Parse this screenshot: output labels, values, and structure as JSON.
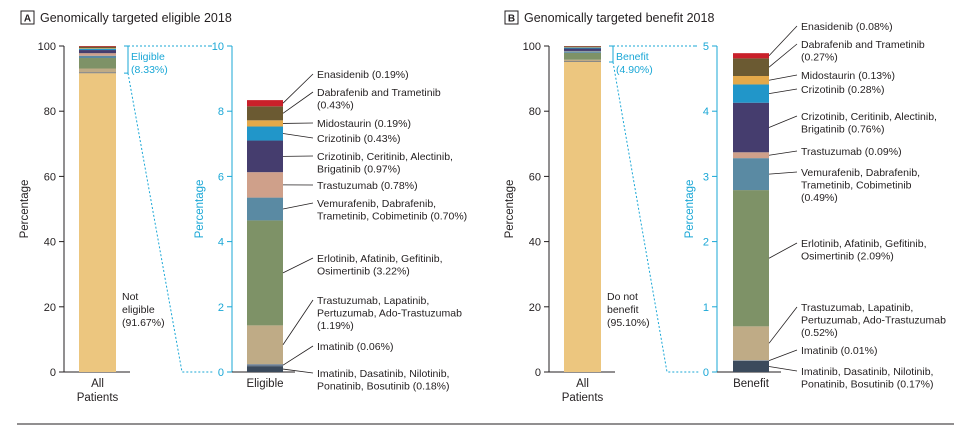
{
  "chart_data": [
    {
      "type": "stacked-bar",
      "panel_label": "A",
      "title": "Genomically targeted eligible 2018",
      "left_bar": {
        "category": "All Patients",
        "ylabel": "Percentage",
        "ylim": [
          0,
          100
        ],
        "yticks": [
          "0",
          "20",
          "40",
          "60",
          "80",
          "100"
        ],
        "main_label": [
          "Not",
          "eligible",
          "(91.67%)"
        ],
        "main_value": 91.67,
        "highlight_label": [
          "Eligible",
          "(8.33%)"
        ],
        "highlight_value": 8.33
      },
      "right_bar": {
        "category": "Eligible",
        "ylabel": "Percentage",
        "ylim": [
          0,
          10
        ],
        "yticks": [
          "0",
          "2",
          "4",
          "6",
          "8",
          "10"
        ],
        "segments": [
          {
            "label": [
              "Imatinib, Dasatinib, Nilotinib,",
              "Ponatinib, Bosutinib (0.18%)"
            ],
            "value": 0.18,
            "color": "#3b4a5c"
          },
          {
            "label": [
              "Imatinib (0.06%)"
            ],
            "value": 0.06,
            "color": "#6b7d93"
          },
          {
            "label": [
              "Trastuzumab, Lapatinib,",
              "Pertuzumab, Ado-Trastuzumab",
              "(1.19%)"
            ],
            "value": 1.19,
            "color": "#bfab86"
          },
          {
            "label": [
              "Erlotinib, Afatinib, Gefitinib,",
              "Osimertinib (3.22%)"
            ],
            "value": 3.22,
            "color": "#7e9267"
          },
          {
            "label": [
              "Vemurafenib, Dabrafenib,",
              "Trametinib, Cobimetinib (0.70%)"
            ],
            "value": 0.7,
            "color": "#5a8aa3"
          },
          {
            "label": [
              "Trastuzumab (0.78%)"
            ],
            "value": 0.78,
            "color": "#cfa08a"
          },
          {
            "label": [
              "Crizotinib, Ceritinib, Alectinib,",
              "Brigatinib (0.97%)"
            ],
            "value": 0.97,
            "color": "#453d6e"
          },
          {
            "label": [
              "Crizotinib (0.43%)"
            ],
            "value": 0.43,
            "color": "#2196c9"
          },
          {
            "label": [
              "Midostaurin (0.19%)"
            ],
            "value": 0.19,
            "color": "#e4a94a"
          },
          {
            "label": [
              "Dabrafenib and Trametinib",
              "(0.43%)"
            ],
            "value": 0.43,
            "color": "#6b5a32"
          },
          {
            "label": [
              "Enasidenib (0.19%)"
            ],
            "value": 0.19,
            "color": "#c9202a"
          }
        ]
      }
    },
    {
      "type": "stacked-bar",
      "panel_label": "B",
      "title": "Genomically targeted benefit 2018",
      "left_bar": {
        "category": "All Patients",
        "ylabel": "Percentage",
        "ylim": [
          0,
          100
        ],
        "yticks": [
          "0",
          "20",
          "40",
          "60",
          "80",
          "100"
        ],
        "main_label": [
          "Do not",
          "benefit",
          "(95.10%)"
        ],
        "main_value": 95.1,
        "highlight_label": [
          "Benefit",
          "(4.90%)"
        ],
        "highlight_value": 4.9
      },
      "right_bar": {
        "category": "Benefit",
        "ylabel": "Percentage",
        "ylim": [
          0,
          5
        ],
        "yticks": [
          "0",
          "1",
          "2",
          "3",
          "4",
          "5"
        ],
        "segments": [
          {
            "label": [
              "Imatinib, Dasatinib, Nilotinib,",
              "Ponatinib, Bosutinib (0.17%)"
            ],
            "value": 0.17,
            "color": "#3b4a5c"
          },
          {
            "label": [
              "Imatinib (0.01%)"
            ],
            "value": 0.01,
            "color": "#6b7d93"
          },
          {
            "label": [
              "Trastuzumab, Lapatinib,",
              "Pertuzumab, Ado-Trastuzumab",
              "(0.52%)"
            ],
            "value": 0.52,
            "color": "#bfab86"
          },
          {
            "label": [
              "Erlotinib, Afatinib, Gefitinib,",
              "Osimertinib (2.09%)"
            ],
            "value": 2.09,
            "color": "#7e9267"
          },
          {
            "label": [
              "Vemurafenib, Dabrafenib,",
              "Trametinib, Cobimetinib",
              "(0.49%)"
            ],
            "value": 0.49,
            "color": "#5a8aa3"
          },
          {
            "label": [
              "Trastuzumab (0.09%)"
            ],
            "value": 0.09,
            "color": "#cfa08a"
          },
          {
            "label": [
              "Crizotinib, Ceritinib, Alectinib,",
              "Brigatinib (0.76%)"
            ],
            "value": 0.76,
            "color": "#453d6e"
          },
          {
            "label": [
              "Crizotinib (0.28%)"
            ],
            "value": 0.28,
            "color": "#2196c9"
          },
          {
            "label": [
              "Midostaurin (0.13%)"
            ],
            "value": 0.13,
            "color": "#e4a94a"
          },
          {
            "label": [
              "Dabrafenib and Trametinib",
              "(0.27%)"
            ],
            "value": 0.27,
            "color": "#6b5a32"
          },
          {
            "label": [
              "Enasidenib (0.08%)"
            ],
            "value": 0.08,
            "color": "#c9202a"
          }
        ]
      }
    }
  ],
  "colors": {
    "not_eligible": "#ecc67f",
    "accent": "#1aa7d6",
    "text": "#231f20",
    "badge_border": "#231f20"
  }
}
